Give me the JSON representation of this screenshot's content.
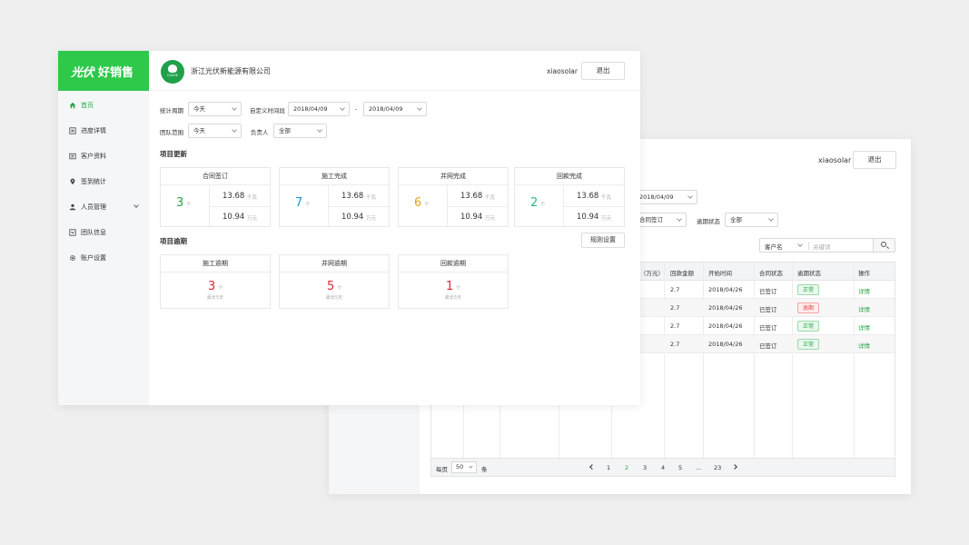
{
  "back": {
    "user": "xiaosolar",
    "logout": "退出",
    "filters": {
      "date": "2018/04/09",
      "contract_status": "合同签订",
      "overdue_label": "逾期状态",
      "overdue_value": "全部"
    },
    "search": {
      "scope": "客户名",
      "placeholder": "关键词"
    },
    "table": {
      "headers": [
        "（万元）",
        "回款金额",
        "开始时间",
        "合同状态",
        "逾期状态",
        "操作"
      ],
      "rows": [
        {
          "amount": "2.7",
          "date": "2018/04/26",
          "contract": "已签订",
          "overdue": "正常",
          "action": "详情"
        },
        {
          "amount": "2.7",
          "date": "2018/04/26",
          "contract": "已签订",
          "overdue": "逾期",
          "action": "详情"
        },
        {
          "amount": "2.7",
          "date": "2018/04/26",
          "contract": "已签订",
          "overdue": "正常",
          "action": "详情"
        },
        {
          "amount": "2.7",
          "date": "2018/04/26",
          "contract": "已签订",
          "overdue": "正常",
          "action": "详情"
        }
      ]
    },
    "pager": {
      "per_page_label": "每页",
      "per_page": "50",
      "unit": "条",
      "pages": [
        "1",
        "2",
        "3",
        "4",
        "5",
        "...",
        "23"
      ]
    }
  },
  "front": {
    "brand": {
      "part1": "光伏",
      "part2": "好销售"
    },
    "nav": [
      {
        "label": "首页",
        "icon": "home-icon"
      },
      {
        "label": "进度详情",
        "icon": "progress-icon"
      },
      {
        "label": "客户资料",
        "icon": "customer-card-icon"
      },
      {
        "label": "签到统计",
        "icon": "location-pin-icon"
      },
      {
        "label": "人员管理",
        "icon": "user-icon"
      },
      {
        "label": "团队信息",
        "icon": "team-info-icon"
      },
      {
        "label": "账户设置",
        "icon": "gear-icon"
      }
    ],
    "company": "浙江光伏新能源有限公司",
    "logo_text": "CAUHE",
    "user": "xiaosolar",
    "logout": "退出",
    "filters": {
      "period_label": "统计周期",
      "period_value": "今天",
      "custom_label": "自定义时间段",
      "date_from": "2018/04/09",
      "dash": "-",
      "date_to": "2018/04/09",
      "team_label": "团队范围",
      "team_value": "今天",
      "owner_label": "负责人",
      "owner_value": "全部"
    },
    "update_title": "项目更新",
    "cards": [
      {
        "title": "合同签订",
        "count": "3",
        "unit": "个",
        "v1": "13.68",
        "u1": "千瓦",
        "v2": "10.94",
        "u2": "万元",
        "color": "#2aa548"
      },
      {
        "title": "施工完成",
        "count": "7",
        "unit": "个",
        "v1": "13.68",
        "u1": "千瓦",
        "v2": "10.94",
        "u2": "万元",
        "color": "#1a9ad6"
      },
      {
        "title": "并网完成",
        "count": "6",
        "unit": "个",
        "v1": "13.68",
        "u1": "千瓦",
        "v2": "10.94",
        "u2": "万元",
        "color": "#e8a317"
      },
      {
        "title": "回款完成",
        "count": "2",
        "unit": "个",
        "v1": "13.68",
        "u1": "千瓦",
        "v2": "10.94",
        "u2": "万元",
        "color": "#2ab58c"
      }
    ],
    "overdue_title": "项目逾期",
    "rule_button": "规则设置",
    "overdue_cards": [
      {
        "title": "施工逾期",
        "count": "3",
        "unit": "个",
        "sub": "最长5天"
      },
      {
        "title": "并网逾期",
        "count": "5",
        "unit": "个",
        "sub": "最长5天"
      },
      {
        "title": "回款逾期",
        "count": "1",
        "unit": "个",
        "sub": "最长5天"
      }
    ]
  }
}
